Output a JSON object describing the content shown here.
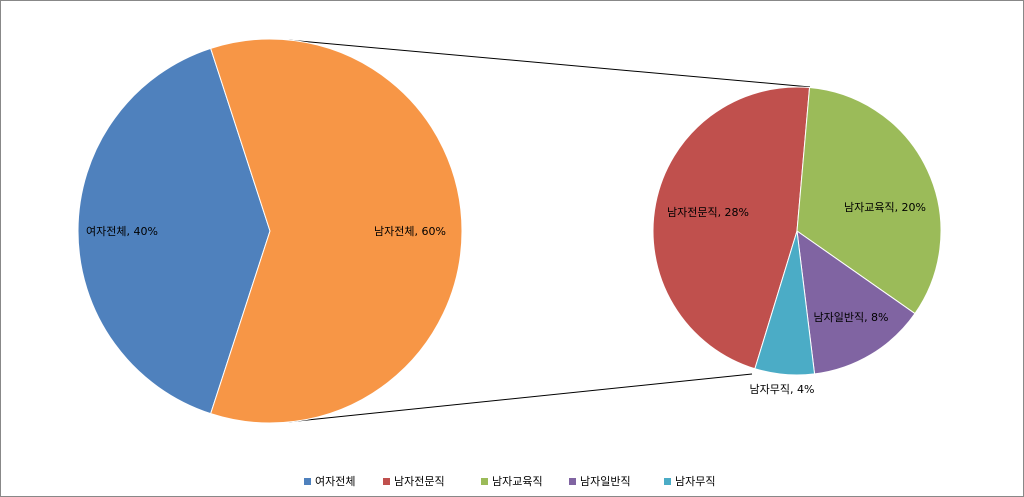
{
  "chart_data": {
    "type": "pie-of-pie",
    "primary": {
      "categories": [
        "여자전체",
        "남자전체"
      ],
      "values": [
        40,
        60
      ],
      "value_labels": [
        "여자전체, 40%",
        "남자전체, 60%"
      ],
      "colors": [
        "#4f81bd",
        "#f79646"
      ]
    },
    "secondary": {
      "categories": [
        "남자전문직",
        "남자교육직",
        "남자일반직",
        "남자무직"
      ],
      "values": [
        28,
        20,
        8,
        4
      ],
      "value_labels": [
        "남자전문직, 28%",
        "남자교육직, 20%",
        "남자일반직, 8%",
        "남자무직, 4%"
      ],
      "colors": [
        "#c0504d",
        "#9bbb59",
        "#8064a2",
        "#4bacc6"
      ]
    },
    "legend": "bottom"
  }
}
